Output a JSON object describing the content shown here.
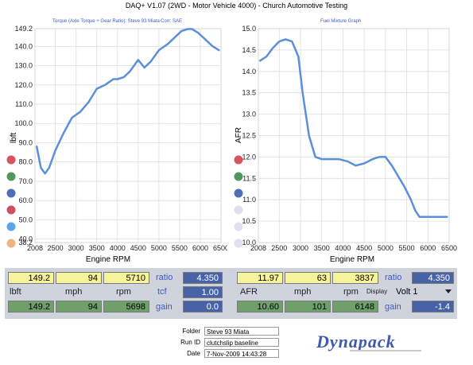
{
  "window": {
    "title": "DAQ+ V1.07 (2WD - Motor Vehicle 4000) - Church Automotive Testing"
  },
  "torque_chart": {
    "header": "Torque (Axle Torque + Gear Ratio): Steve 93 Miata",
    "header_right": "Corr: SAE",
    "ylabel": "lbft",
    "xlabel": "Engine RPM",
    "y_ticks": [
      "149.2",
      "140.0",
      "130.0",
      "120.0",
      "110.0",
      "100.0",
      "90.0",
      "80.0",
      "70.0",
      "60.0",
      "50.0",
      "40.0",
      "38.2"
    ],
    "x_ticks": [
      "2008",
      "2500",
      "3000",
      "3500",
      "4000",
      "4500",
      "5000",
      "5500",
      "6000",
      "6500"
    ],
    "legend_dots": [
      "#d8545f",
      "#4f9960",
      "#4d6fb8",
      "#cf4f67",
      "#5aa8e8",
      "#f1b27d"
    ]
  },
  "afr_chart": {
    "header": "Fuel Mixture Graph",
    "ylabel": "AFR",
    "xlabel": "Engine RPM",
    "y_ticks": [
      "15.0",
      "14.5",
      "14.0",
      "13.5",
      "13.0",
      "12.5",
      "12.0",
      "11.5",
      "11.0",
      "10.5",
      "10.0"
    ],
    "x_ticks": [
      "2008",
      "2500",
      "3000",
      "3500",
      "4000",
      "4500",
      "5000",
      "5500",
      "6000",
      "6500"
    ],
    "legend_dots": [
      "#d8545f",
      "#4f9960",
      "#4d6fb8",
      "#e2e0ee",
      "#e2e0ee",
      "#e2e0ee"
    ]
  },
  "chart_data": [
    {
      "type": "line",
      "title": "Torque (Axle Torque + Gear Ratio): Steve 93 Miata",
      "xlabel": "Engine RPM",
      "ylabel": "lbft",
      "xlim": [
        2008,
        6500
      ],
      "ylim": [
        38.2,
        149.2
      ],
      "grid": true,
      "series": [
        {
          "name": "Steve 93 Miata",
          "color": "#5b8fd9",
          "x": [
            2050,
            2150,
            2250,
            2350,
            2500,
            2700,
            2900,
            3100,
            3300,
            3500,
            3700,
            3900,
            4000,
            4150,
            4300,
            4500,
            4650,
            4800,
            5000,
            5200,
            5400,
            5550,
            5700,
            5800,
            5950,
            6100,
            6300,
            6450
          ],
          "y": [
            88,
            77,
            74,
            77,
            86,
            95,
            103,
            106,
            111,
            118,
            120,
            123,
            123,
            124,
            127,
            133,
            129,
            132,
            138,
            141,
            145,
            148,
            149,
            149,
            147,
            144,
            140,
            138
          ]
        }
      ]
    },
    {
      "type": "line",
      "title": "Fuel Mixture Graph",
      "xlabel": "Engine RPM",
      "ylabel": "AFR",
      "xlim": [
        2008,
        6500
      ],
      "ylim": [
        10.0,
        15.0
      ],
      "grid": true,
      "series": [
        {
          "name": "AFR",
          "color": "#5b8fd9",
          "x": [
            2050,
            2200,
            2350,
            2500,
            2650,
            2800,
            2950,
            3050,
            3200,
            3350,
            3500,
            3700,
            3900,
            4100,
            4300,
            4500,
            4700,
            4850,
            5000,
            5150,
            5300,
            5450,
            5600,
            5700,
            5800,
            6000,
            6200,
            6450
          ],
          "y": [
            14.25,
            14.35,
            14.55,
            14.7,
            14.75,
            14.7,
            14.35,
            13.5,
            12.5,
            12.0,
            11.95,
            11.95,
            11.95,
            11.9,
            11.8,
            11.85,
            11.95,
            12.0,
            12.0,
            11.8,
            11.55,
            11.3,
            11.0,
            10.75,
            10.6,
            10.6,
            10.6,
            10.6
          ]
        }
      ]
    }
  ],
  "readouts": {
    "top_left": [
      "149.2",
      "94",
      "5710"
    ],
    "ratio_label": "ratio",
    "ratio_value": "4.350",
    "tcf_label": "tcf",
    "tcf_value": "1.00",
    "gain_label": "gain",
    "gain_value": "0.0",
    "labels_left": [
      "lbft",
      "mph",
      "rpm"
    ],
    "bottom_left": [
      "149.2",
      "94",
      "5698"
    ],
    "top_right": [
      "11.97",
      "63",
      "3837"
    ],
    "ratio_right_label": "ratio",
    "ratio_right_value": "4.350",
    "labels_right": [
      "AFR",
      "mph",
      "rpm"
    ],
    "display_label": "Display",
    "display_select": "Volt 1",
    "bottom_right": [
      "10.60",
      "101",
      "6148"
    ],
    "gain_right_label": "gain",
    "gain_right_value": "-1.4"
  },
  "footer": {
    "folder_label": "Folder",
    "folder_value": "Steve 93 Miata",
    "runid_label": "Run ID",
    "runid_value": "clutchslip baseline",
    "date_label": "Date",
    "date_value": "7-Nov-2009 14:43:28",
    "logo": "Dynapack"
  },
  "colors": {
    "line": "#5b8fd9",
    "yellow_cell": "#f7f39a",
    "green_cell": "#6fa06c",
    "blue_cell": "#4663a8"
  }
}
